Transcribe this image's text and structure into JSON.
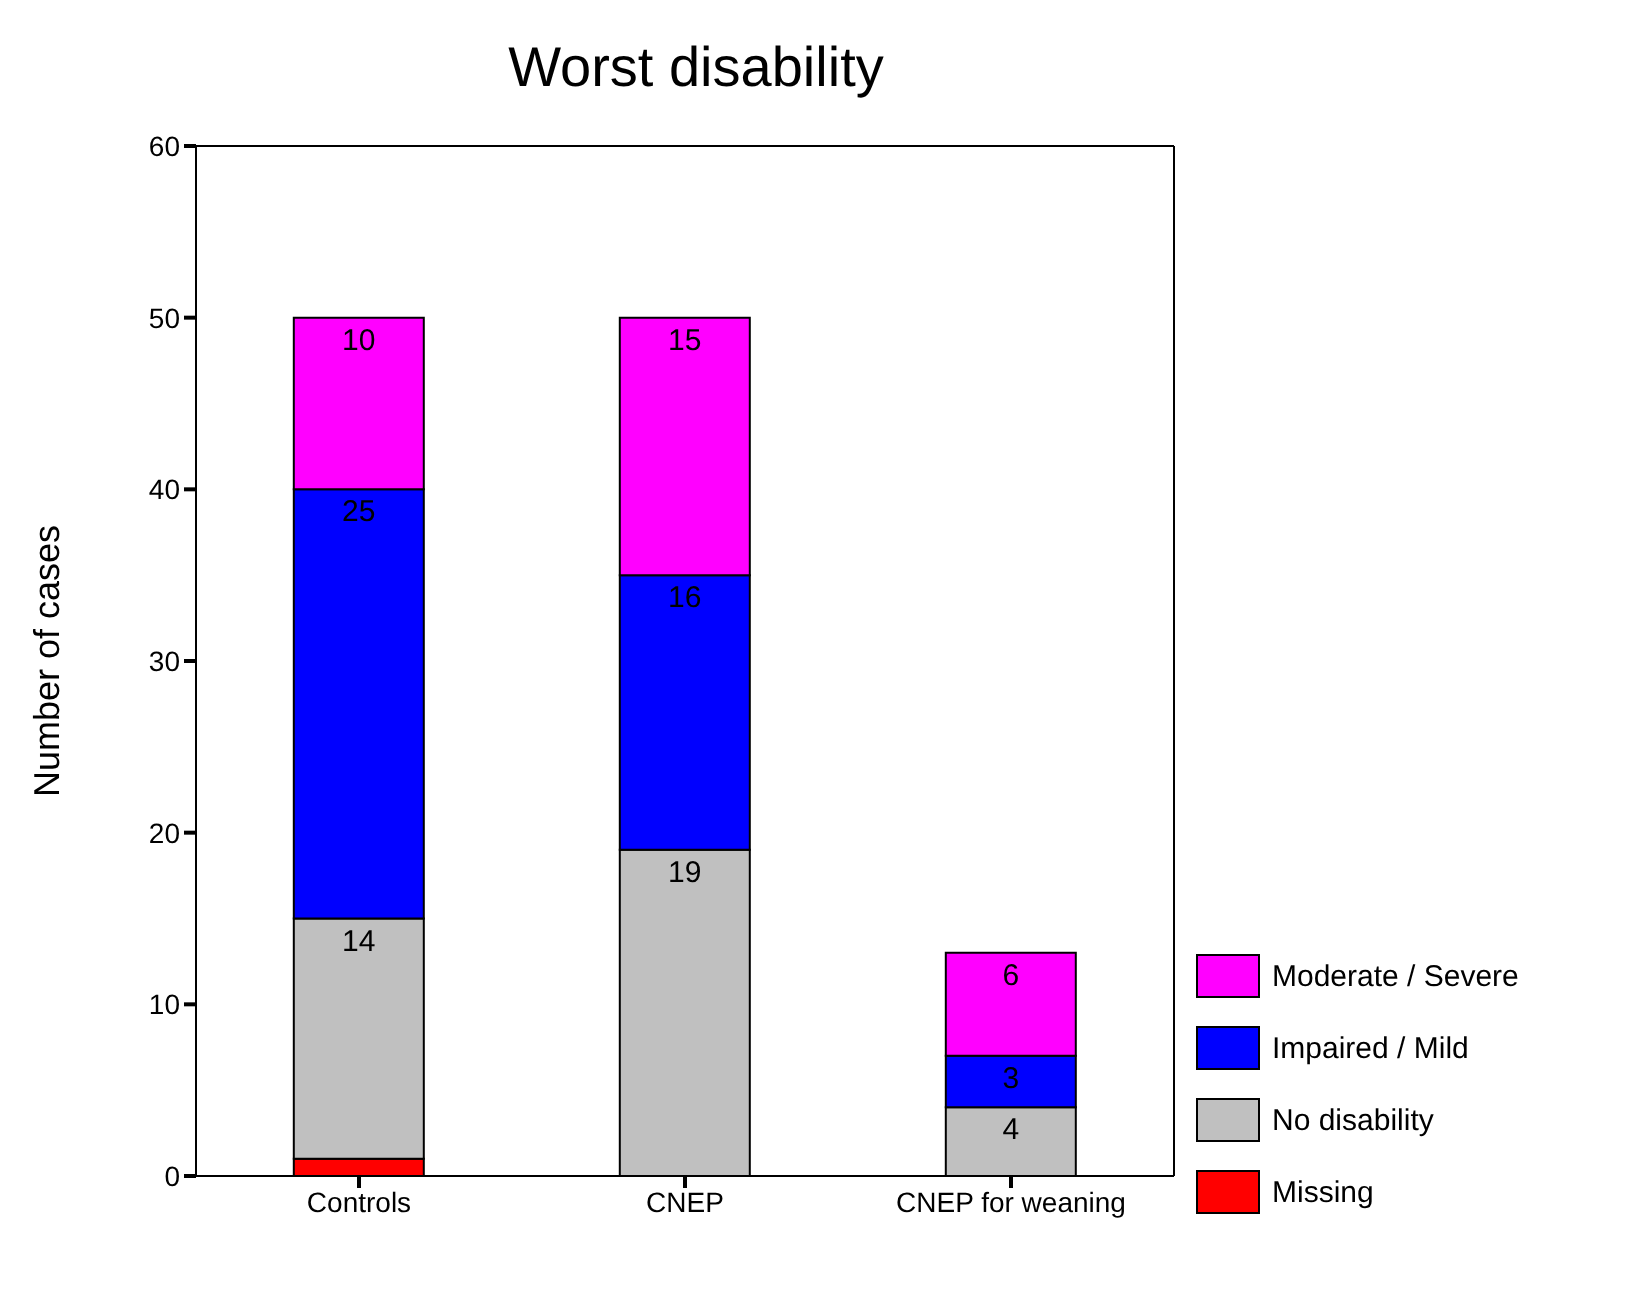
{
  "chart_data": {
    "type": "bar",
    "title": "Worst disability",
    "ylabel": "Number of cases",
    "categories": [
      "Controls",
      "CNEP",
      "CNEP for weaning"
    ],
    "stacked": true,
    "ylim": [
      0,
      60
    ],
    "yticks": [
      0,
      10,
      20,
      30,
      40,
      50,
      60
    ],
    "legend": "right",
    "series": [
      {
        "name": "Missing",
        "color": "#ff0000",
        "values": [
          1,
          0,
          0
        ],
        "value_labels": [
          null,
          null,
          null
        ]
      },
      {
        "name": "No disability",
        "color": "#c0c0c0",
        "values": [
          14,
          19,
          4
        ],
        "value_labels": [
          "14",
          "19",
          "4"
        ]
      },
      {
        "name": "Impaired / Mild",
        "color": "#0000ff",
        "values": [
          25,
          16,
          3
        ],
        "value_labels": [
          "25",
          "16",
          "3"
        ]
      },
      {
        "name": "Moderate / Severe",
        "color": "#ff00ff",
        "values": [
          10,
          15,
          6
        ],
        "value_labels": [
          "10",
          "15",
          "6"
        ]
      }
    ]
  }
}
